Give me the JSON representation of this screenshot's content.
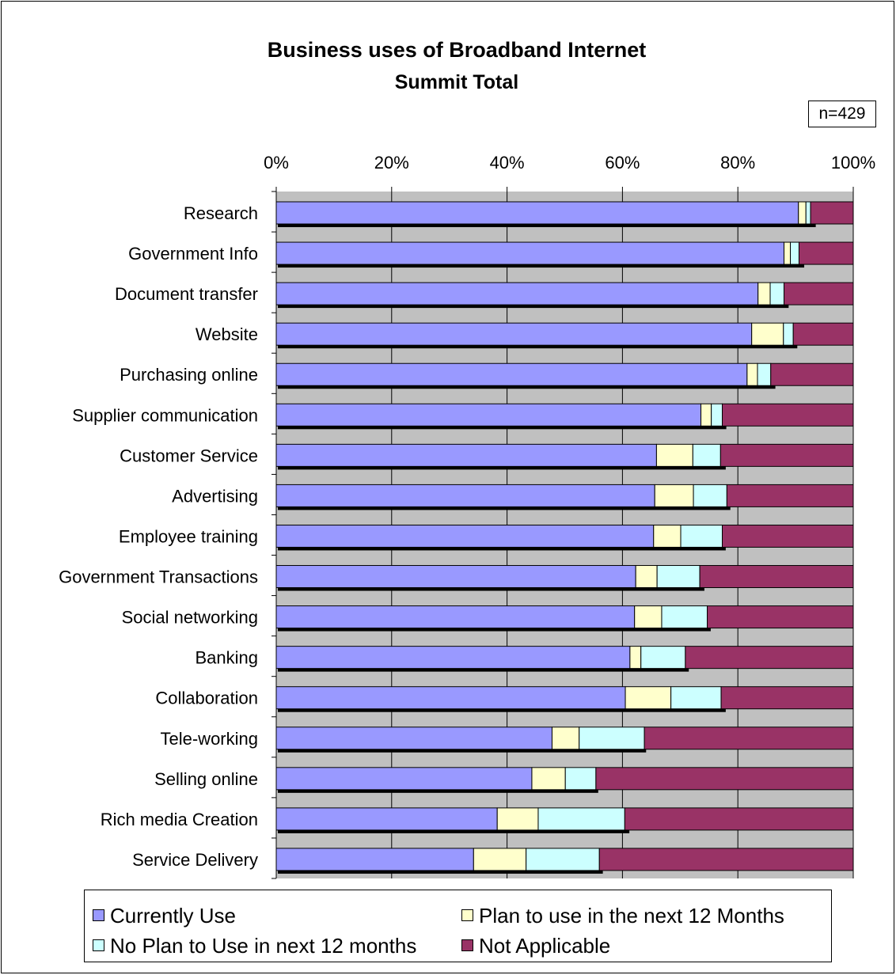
{
  "chart_data": {
    "type": "bar",
    "orientation": "horizontal",
    "stacked": true,
    "title": "Business uses of Broadband Internet",
    "subtitle": "Summit Total",
    "annotation": "n=429",
    "xlim": [
      0,
      100
    ],
    "xticks": [
      "0%",
      "20%",
      "40%",
      "60%",
      "80%",
      "100%"
    ],
    "grid": true,
    "legend_position": "bottom",
    "categories": [
      "Research",
      "Government Info",
      "Document transfer",
      "Website",
      "Purchasing online",
      "Supplier communication",
      "Customer Service",
      "Advertising",
      "Employee training",
      "Government Transactions",
      "Social networking",
      "Banking",
      "Collaboration",
      "Tele-working",
      "Selling online",
      "Rich media Creation",
      "Service Delivery"
    ],
    "series": [
      {
        "name": "Currently Use",
        "color": "#9999ff",
        "values": [
          90.5,
          88,
          83.5,
          82.4,
          81.6,
          73.6,
          65.9,
          65.6,
          65.4,
          62.3,
          62.1,
          61.3,
          60.5,
          47.8,
          44.3,
          38.3,
          34.2
        ]
      },
      {
        "name": "Plan to use in the next 12 Months",
        "color": "#ffffcc",
        "values": [
          1.3,
          1.1,
          2.1,
          5.5,
          1.8,
          1.8,
          6.3,
          6.7,
          4.7,
          3.7,
          4.7,
          1.9,
          7.9,
          4.7,
          5.8,
          7.1,
          9.1
        ]
      },
      {
        "name": "No Plan to Use in next 12 months",
        "color": "#ccffff",
        "values": [
          0.8,
          1.5,
          2.4,
          1.7,
          2.3,
          1.9,
          4.8,
          5.8,
          7.2,
          7.4,
          7.9,
          7.7,
          8.7,
          11.3,
          5.3,
          15,
          12.7
        ]
      },
      {
        "name": "Not Applicable",
        "color": "#993366",
        "values": [
          7.4,
          9.4,
          12,
          10.4,
          14.3,
          22.7,
          23,
          21.9,
          22.7,
          26.6,
          25.3,
          29.1,
          22.9,
          36.2,
          44.6,
          39.6,
          44
        ]
      }
    ],
    "totals_line_values": [
      93.5,
      91.5,
      88.8,
      90.3,
      86.5,
      78,
      77.9,
      78.7,
      77.9,
      74.2,
      75.3,
      71.5,
      77.9,
      64.1,
      55.8,
      61.2,
      56.6
    ]
  }
}
